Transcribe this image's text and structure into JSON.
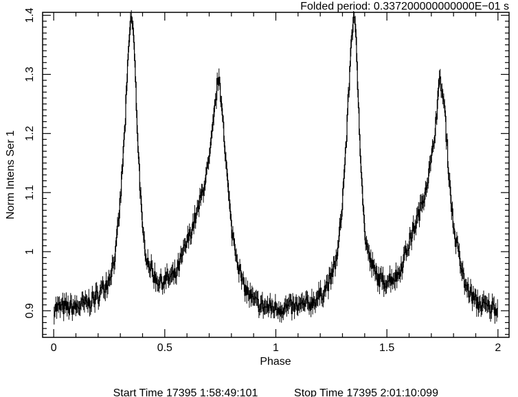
{
  "header": {
    "period_label": "Folded period: 0.337200000000000E−01 s"
  },
  "footer": {
    "start_time": "Start Time 17395  1:58:49:101",
    "stop_time": "Stop Time 17395  2:01:10:099"
  },
  "chart_data": {
    "type": "line",
    "xlabel": "Phase",
    "ylabel": "Norm Intens Ser 1",
    "xlim": [
      -0.05,
      2.05
    ],
    "ylim": [
      0.855,
      1.405
    ],
    "x_ticks": [
      "0",
      "0.5",
      "1",
      "1.5",
      "2"
    ],
    "y_ticks": [
      "0.9",
      "1",
      "1.1",
      "1.2",
      "1.3",
      "1.4"
    ],
    "phase_bins_per_cycle": 256,
    "series": [
      {
        "style": "histogram step with error bars",
        "color": "#000000",
        "x": [
          0.0,
          0.05,
          0.1,
          0.15,
          0.2,
          0.25,
          0.28,
          0.3,
          0.32,
          0.34,
          0.35,
          0.36,
          0.38,
          0.4,
          0.42,
          0.45,
          0.48,
          0.5,
          0.55,
          0.6,
          0.65,
          0.7,
          0.72,
          0.74,
          0.76,
          0.78,
          0.8,
          0.85,
          0.9,
          0.95,
          1.0,
          1.05,
          1.1,
          1.15,
          1.2,
          1.25,
          1.28,
          1.3,
          1.32,
          1.34,
          1.35,
          1.36,
          1.38,
          1.4,
          1.42,
          1.45,
          1.48,
          1.5,
          1.55,
          1.6,
          1.65,
          1.7,
          1.72,
          1.74,
          1.76,
          1.78,
          1.8,
          1.85,
          1.9,
          1.95,
          2.0
        ],
        "y": [
          0.905,
          0.905,
          0.906,
          0.912,
          0.925,
          0.955,
          1.0,
          1.085,
          1.205,
          1.36,
          1.4,
          1.365,
          1.18,
          1.03,
          0.99,
          0.96,
          0.948,
          0.952,
          0.96,
          1.015,
          1.07,
          1.15,
          1.22,
          1.295,
          1.24,
          1.13,
          1.04,
          0.945,
          0.915,
          0.906,
          0.905,
          0.905,
          0.906,
          0.912,
          0.925,
          0.955,
          1.0,
          1.085,
          1.205,
          1.36,
          1.4,
          1.365,
          1.18,
          1.03,
          0.99,
          0.96,
          0.948,
          0.952,
          0.96,
          1.015,
          1.07,
          1.15,
          1.22,
          1.295,
          1.24,
          1.13,
          1.04,
          0.945,
          0.915,
          0.906,
          0.905
        ],
        "typical_error": 0.012
      }
    ]
  }
}
